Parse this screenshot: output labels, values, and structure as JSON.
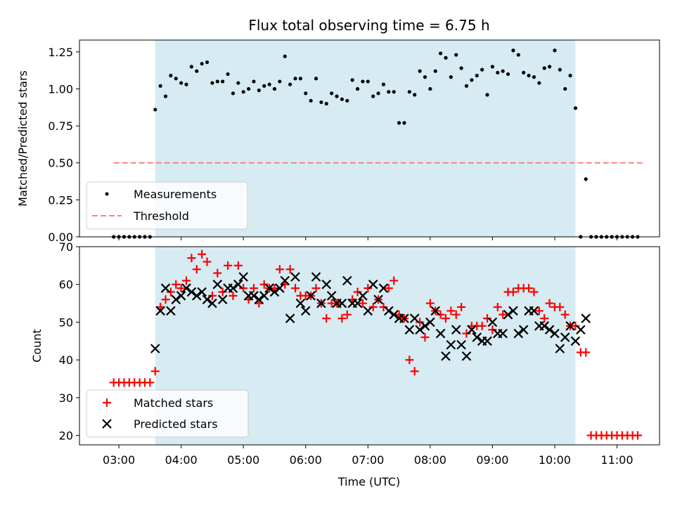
{
  "chart_data": [
    {
      "type": "scatter",
      "title": "Flux total observing time = 6.75 h",
      "xlabel": "",
      "ylabel": "Matched/Predicted stars",
      "ylim": [
        0,
        1.33
      ],
      "yticks": [
        "0.00",
        "0.25",
        "0.50",
        "0.75",
        "1.00",
        "1.25"
      ],
      "legend_position": "lower-left",
      "legend": [
        "Measurements",
        "Threshold"
      ],
      "shaded_interval": [
        "03:35",
        "10:20"
      ],
      "threshold": {
        "name": "Threshold",
        "y": 0.5,
        "x": [
          "02:55",
          "11:25"
        ],
        "color": "#ff7f7f"
      },
      "series": [
        {
          "name": "Measurements",
          "color": "#000000",
          "x": [
            "02:55",
            "03:00",
            "03:05",
            "03:10",
            "03:15",
            "03:20",
            "03:25",
            "03:30",
            "03:35",
            "03:40",
            "03:45",
            "03:50",
            "03:55",
            "04:00",
            "04:05",
            "04:10",
            "04:15",
            "04:20",
            "04:25",
            "04:30",
            "04:35",
            "04:40",
            "04:45",
            "04:50",
            "04:55",
            "05:00",
            "05:05",
            "05:10",
            "05:15",
            "05:20",
            "05:25",
            "05:30",
            "05:35",
            "05:40",
            "05:45",
            "05:50",
            "05:55",
            "06:00",
            "06:05",
            "06:10",
            "06:15",
            "06:20",
            "06:25",
            "06:30",
            "06:35",
            "06:40",
            "06:45",
            "06:50",
            "06:55",
            "07:00",
            "07:05",
            "07:10",
            "07:15",
            "07:20",
            "07:25",
            "07:30",
            "07:35",
            "07:40",
            "07:45",
            "07:50",
            "07:55",
            "08:00",
            "08:05",
            "08:10",
            "08:15",
            "08:20",
            "08:25",
            "08:30",
            "08:35",
            "08:40",
            "08:45",
            "08:50",
            "08:55",
            "09:00",
            "09:05",
            "09:10",
            "09:15",
            "09:20",
            "09:25",
            "09:30",
            "09:35",
            "09:40",
            "09:45",
            "09:50",
            "09:55",
            "10:00",
            "10:05",
            "10:10",
            "10:15",
            "10:20",
            "10:25",
            "10:30",
            "10:35",
            "10:40",
            "10:45",
            "10:50",
            "10:55",
            "11:00",
            "11:05",
            "11:10",
            "11:15",
            "11:20"
          ],
          "values": [
            0,
            0,
            0,
            0,
            0,
            0,
            0,
            0,
            0.86,
            1.02,
            0.95,
            1.09,
            1.07,
            1.04,
            1.03,
            1.15,
            1.12,
            1.17,
            1.18,
            1.04,
            1.05,
            1.05,
            1.1,
            0.97,
            1.04,
            0.98,
            1.0,
            1.05,
            0.99,
            1.02,
            1.03,
            1.0,
            1.05,
            1.22,
            1.03,
            1.07,
            1.07,
            0.97,
            0.92,
            1.07,
            0.91,
            0.9,
            0.97,
            0.95,
            0.93,
            0.92,
            1.06,
            1.0,
            1.05,
            1.05,
            0.95,
            0.97,
            1.03,
            0.98,
            0.98,
            0.77,
            0.77,
            0.98,
            0.96,
            1.12,
            1.08,
            1.0,
            1.12,
            1.24,
            1.21,
            1.08,
            1.23,
            1.14,
            1.02,
            1.06,
            1.09,
            1.13,
            0.96,
            1.15,
            1.11,
            1.12,
            1.1,
            1.26,
            1.23,
            1.11,
            1.09,
            1.08,
            1.04,
            1.14,
            1.15,
            1.26,
            1.13,
            1.0,
            1.09,
            0.87,
            0,
            0.39,
            0,
            0,
            0,
            0,
            0,
            0,
            0,
            0,
            0,
            0
          ]
        }
      ]
    },
    {
      "type": "scatter",
      "title": "",
      "xlabel": "Time (UTC)",
      "ylabel": "Count",
      "ylim": [
        17.5,
        70
      ],
      "yticks": [
        "20",
        "30",
        "40",
        "50",
        "60",
        "70"
      ],
      "xticks": [
        "03:00",
        "04:00",
        "05:00",
        "06:00",
        "07:00",
        "08:00",
        "09:00",
        "10:00",
        "11:00"
      ],
      "legend_position": "lower-left",
      "legend": [
        "Matched stars",
        "Predicted stars"
      ],
      "shaded_interval": [
        "03:35",
        "10:20"
      ],
      "series": [
        {
          "name": "Matched stars",
          "marker": "plus",
          "color": "#ff0000",
          "x": [
            "02:55",
            "03:00",
            "03:05",
            "03:10",
            "03:15",
            "03:20",
            "03:25",
            "03:30",
            "03:35",
            "03:40",
            "03:45",
            "03:50",
            "03:55",
            "04:00",
            "04:05",
            "04:10",
            "04:15",
            "04:20",
            "04:25",
            "04:30",
            "04:35",
            "04:40",
            "04:45",
            "04:50",
            "04:55",
            "05:00",
            "05:05",
            "05:10",
            "05:15",
            "05:20",
            "05:25",
            "05:30",
            "05:35",
            "05:40",
            "05:45",
            "05:50",
            "05:55",
            "06:00",
            "06:05",
            "06:10",
            "06:15",
            "06:20",
            "06:25",
            "06:30",
            "06:35",
            "06:40",
            "06:45",
            "06:50",
            "06:55",
            "07:00",
            "07:05",
            "07:10",
            "07:15",
            "07:20",
            "07:25",
            "07:30",
            "07:35",
            "07:40",
            "07:45",
            "07:50",
            "07:55",
            "08:00",
            "08:05",
            "08:10",
            "08:15",
            "08:20",
            "08:25",
            "08:30",
            "08:35",
            "08:40",
            "08:45",
            "08:50",
            "08:55",
            "09:00",
            "09:05",
            "09:10",
            "09:15",
            "09:20",
            "09:25",
            "09:30",
            "09:35",
            "09:40",
            "09:45",
            "09:50",
            "09:55",
            "10:00",
            "10:05",
            "10:10",
            "10:15",
            "10:20",
            "10:25",
            "10:30",
            "10:35",
            "10:40",
            "10:45",
            "10:50",
            "10:55",
            "11:00",
            "11:05",
            "11:10",
            "11:15",
            "11:20"
          ],
          "values": [
            34,
            34,
            34,
            34,
            34,
            34,
            34,
            34,
            37,
            54,
            56,
            58,
            60,
            59,
            61,
            67,
            64,
            68,
            66,
            57,
            63,
            58,
            65,
            57,
            65,
            59,
            56,
            59,
            55,
            60,
            59,
            59,
            64,
            60,
            64,
            59,
            57,
            57,
            57,
            59,
            55,
            51,
            55,
            55,
            51,
            52,
            56,
            58,
            55,
            59,
            54,
            56,
            54,
            59,
            61,
            52,
            51,
            40,
            37,
            50,
            46,
            55,
            53,
            52,
            51,
            53,
            52,
            54,
            47,
            49,
            49,
            49,
            51,
            48,
            54,
            52,
            58,
            58,
            59,
            59,
            59,
            58,
            53,
            51,
            55,
            54,
            54,
            52,
            49,
            49,
            42,
            42,
            20,
            20,
            20,
            20,
            20,
            20,
            20,
            20,
            20,
            20
          ]
        },
        {
          "name": "Predicted stars",
          "marker": "x",
          "color": "#000000",
          "x": [
            "03:35",
            "03:40",
            "03:45",
            "03:50",
            "03:55",
            "04:00",
            "04:05",
            "04:10",
            "04:15",
            "04:20",
            "04:25",
            "04:30",
            "04:35",
            "04:40",
            "04:45",
            "04:50",
            "04:55",
            "05:00",
            "05:05",
            "05:10",
            "05:15",
            "05:20",
            "05:25",
            "05:30",
            "05:35",
            "05:40",
            "05:45",
            "05:50",
            "05:55",
            "06:00",
            "06:05",
            "06:10",
            "06:15",
            "06:20",
            "06:25",
            "06:30",
            "06:35",
            "06:40",
            "06:45",
            "06:50",
            "06:55",
            "07:00",
            "07:05",
            "07:10",
            "07:15",
            "07:20",
            "07:25",
            "07:30",
            "07:35",
            "07:40",
            "07:45",
            "07:50",
            "07:55",
            "08:00",
            "08:05",
            "08:10",
            "08:15",
            "08:20",
            "08:25",
            "08:30",
            "08:35",
            "08:40",
            "08:45",
            "08:50",
            "08:55",
            "09:00",
            "09:05",
            "09:10",
            "09:15",
            "09:20",
            "09:25",
            "09:30",
            "09:35",
            "09:40",
            "09:45",
            "09:50",
            "09:55",
            "10:00",
            "10:05",
            "10:10",
            "10:15",
            "10:20",
            "10:25",
            "10:30"
          ],
          "values": [
            43,
            53,
            59,
            53,
            56,
            57,
            59,
            58,
            57,
            58,
            56,
            55,
            60,
            56,
            59,
            59,
            60,
            62,
            57,
            57,
            56,
            57,
            59,
            58,
            59,
            61,
            51,
            62,
            55,
            53,
            57,
            62,
            55,
            60,
            57,
            55,
            55,
            61,
            55,
            55,
            57,
            53,
            60,
            56,
            59,
            53,
            52,
            51,
            51,
            48,
            51,
            48,
            49,
            50,
            53,
            47,
            41,
            44,
            48,
            44,
            41,
            48,
            46,
            45,
            45,
            50,
            47,
            47,
            52,
            53,
            47,
            48,
            53,
            53,
            49,
            49,
            48,
            47,
            43,
            46,
            49,
            45,
            48,
            51
          ]
        }
      ]
    }
  ]
}
